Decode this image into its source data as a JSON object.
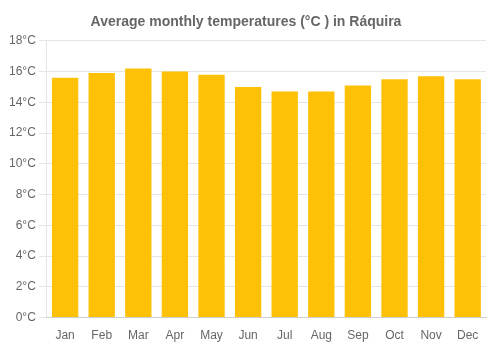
{
  "chart_data": {
    "type": "bar",
    "title": "Average monthly temperatures (°C ) in Ráquira",
    "categories": [
      "Jan",
      "Feb",
      "Mar",
      "Apr",
      "May",
      "Jun",
      "Jul",
      "Aug",
      "Sep",
      "Oct",
      "Nov",
      "Dec"
    ],
    "values": [
      15.6,
      15.9,
      16.2,
      16.0,
      15.8,
      15.0,
      14.7,
      14.7,
      15.1,
      15.5,
      15.7,
      15.5
    ],
    "color": "#FFC107",
    "ylim": [
      0,
      18
    ],
    "yticks": [
      {
        "value": 0,
        "label": "0°C"
      },
      {
        "value": 2,
        "label": "2°C"
      },
      {
        "value": 4,
        "label": "4°C"
      },
      {
        "value": 6,
        "label": "6°C"
      },
      {
        "value": 8,
        "label": "8°C"
      },
      {
        "value": 10,
        "label": "10°C"
      },
      {
        "value": 12,
        "label": "12°C"
      },
      {
        "value": 14,
        "label": "14°C"
      },
      {
        "value": 16,
        "label": "16°C"
      },
      {
        "value": 18,
        "label": "18°C"
      }
    ],
    "grid": true
  }
}
